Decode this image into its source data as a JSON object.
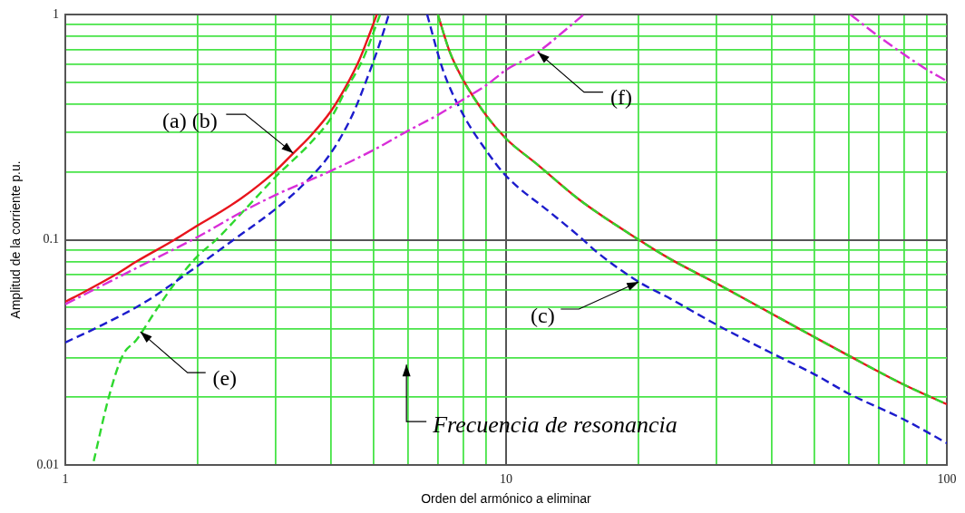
{
  "chart_data": {
    "type": "line",
    "xlabel": "Orden del armónico a eliminar",
    "ylabel": "Amplitud de la corriente p.u.",
    "log": "xy",
    "grid": true,
    "xlim": [
      1,
      100
    ],
    "ylim": [
      0.01,
      1
    ],
    "xticks": [
      1,
      {
        "value": 2,
        "label": null
      },
      {
        "value": 3,
        "label": null
      },
      {
        "value": 4,
        "label": null
      },
      {
        "value": 5,
        "label": null
      },
      {
        "value": 6,
        "label": null
      },
      {
        "value": 7,
        "label": null
      },
      {
        "value": 8,
        "label": null
      },
      {
        "value": 9,
        "label": null
      },
      10,
      {
        "value": 20,
        "label": null
      },
      {
        "value": 30,
        "label": null
      },
      {
        "value": 40,
        "label": null
      },
      {
        "value": 50,
        "label": null
      },
      {
        "value": 60,
        "label": null
      },
      {
        "value": 70,
        "label": null
      },
      {
        "value": 80,
        "label": null
      },
      {
        "value": 90,
        "label": null
      },
      100
    ],
    "yticks": [
      0.01,
      {
        "value": 0.02,
        "label": null
      },
      {
        "value": 0.03,
        "label": null
      },
      {
        "value": 0.04,
        "label": null
      },
      {
        "value": 0.05,
        "label": null
      },
      {
        "value": 0.06,
        "label": null
      },
      {
        "value": 0.07,
        "label": null
      },
      {
        "value": 0.08,
        "label": null
      },
      {
        "value": 0.09,
        "label": null
      },
      0.1,
      {
        "value": 0.2,
        "label": null
      },
      {
        "value": 0.3,
        "label": null
      },
      {
        "value": 0.4,
        "label": null
      },
      {
        "value": 0.5,
        "label": null
      },
      {
        "value": 0.6,
        "label": null
      },
      {
        "value": 0.7,
        "label": null
      },
      {
        "value": 0.8,
        "label": null
      },
      {
        "value": 0.9,
        "label": null
      },
      1
    ],
    "series": [
      {
        "color": "#e8141c",
        "line_style": "solid",
        "x": [
          1,
          1.11,
          1.3,
          1.45,
          1.77,
          2,
          2.25,
          2.5,
          2.75,
          3,
          3.29,
          3.6,
          4,
          4.32,
          4.65,
          4.89,
          5.09,
          6,
          7,
          7.46,
          8,
          9,
          10,
          11.8,
          14.7,
          20,
          23.6,
          30,
          40,
          50,
          60,
          80,
          100
        ],
        "values": [
          0.053,
          0.059,
          0.07,
          0.08,
          0.1,
          0.116,
          0.133,
          0.152,
          0.175,
          0.202,
          0.242,
          0.289,
          0.371,
          0.475,
          0.631,
          0.81,
          1,
          null,
          1,
          0.678,
          0.51,
          0.358,
          0.281,
          0.215,
          0.15,
          0.1,
          0.082,
          0.064,
          0.047,
          0.037,
          0.0305,
          0.0227,
          0.0186
        ]
      },
      {
        "color": "#2ed82e",
        "line_style": "dashed",
        "x": [
          1.16,
          1.255,
          1.35,
          1.45,
          1.61,
          1.79,
          2,
          2.2,
          2.5,
          3,
          3.6,
          4,
          4.32,
          4.73,
          5.18,
          6,
          7,
          7.46,
          8,
          9,
          10,
          11.8,
          14.7,
          20,
          23.6,
          30,
          40,
          50,
          60,
          80,
          100
        ],
        "values": [
          0.0104,
          0.02,
          0.0307,
          0.0359,
          0.049,
          0.0657,
          0.085,
          0.1,
          0.13,
          0.19,
          0.269,
          0.345,
          0.458,
          0.631,
          1,
          null,
          1,
          0.678,
          0.51,
          0.358,
          0.281,
          0.215,
          0.15,
          0.1,
          0.082,
          0.064,
          0.047,
          0.037,
          0.0305,
          0.0227,
          0.0186
        ]
      },
      {
        "color": "#1c1ccc",
        "line_style": "dashed",
        "x": [
          1,
          1.2,
          1.52,
          1.94,
          2.41,
          3,
          3.47,
          4,
          4.48,
          4.82,
          5.18,
          5.42,
          6,
          6.62,
          7.19,
          8,
          9,
          10,
          12.6,
          14.7,
          16.2,
          20,
          23.6,
          30,
          40,
          50,
          60,
          80,
          100
        ],
        "values": [
          0.035,
          0.0414,
          0.053,
          0.0735,
          0.1,
          0.137,
          0.176,
          0.242,
          0.358,
          0.51,
          0.754,
          1,
          null,
          1,
          0.567,
          0.358,
          0.25,
          0.192,
          0.132,
          0.103,
          0.087,
          0.065,
          0.0547,
          0.042,
          0.0314,
          0.0253,
          0.0207,
          0.0159,
          0.0125
        ]
      },
      {
        "color": "#d82ed8",
        "line_style": "dashdot",
        "x": [
          1,
          1.45,
          2,
          2.5,
          3,
          4,
          5,
          6,
          7,
          8,
          9,
          10,
          11.8,
          13.6,
          15,
          30,
          60.4,
          70,
          89,
          100
        ],
        "values": [
          0.0517,
          0.0749,
          0.103,
          0.132,
          0.158,
          0.202,
          0.25,
          0.305,
          0.358,
          0.42,
          0.484,
          0.567,
          0.68,
          0.85,
          1,
          null,
          1,
          0.8,
          0.578,
          0.506
        ]
      }
    ],
    "annotations": [
      {
        "text": "(a) (b)",
        "x": 3.29,
        "y": 0.242
      },
      {
        "text": "(f)",
        "x": 11.8,
        "y": 0.68
      },
      {
        "text": "(c)",
        "x": 20,
        "y": 0.065
      },
      {
        "text": "(e)",
        "x": 1.48,
        "y": 0.039
      },
      "Frecuencia de resonancia"
    ]
  }
}
